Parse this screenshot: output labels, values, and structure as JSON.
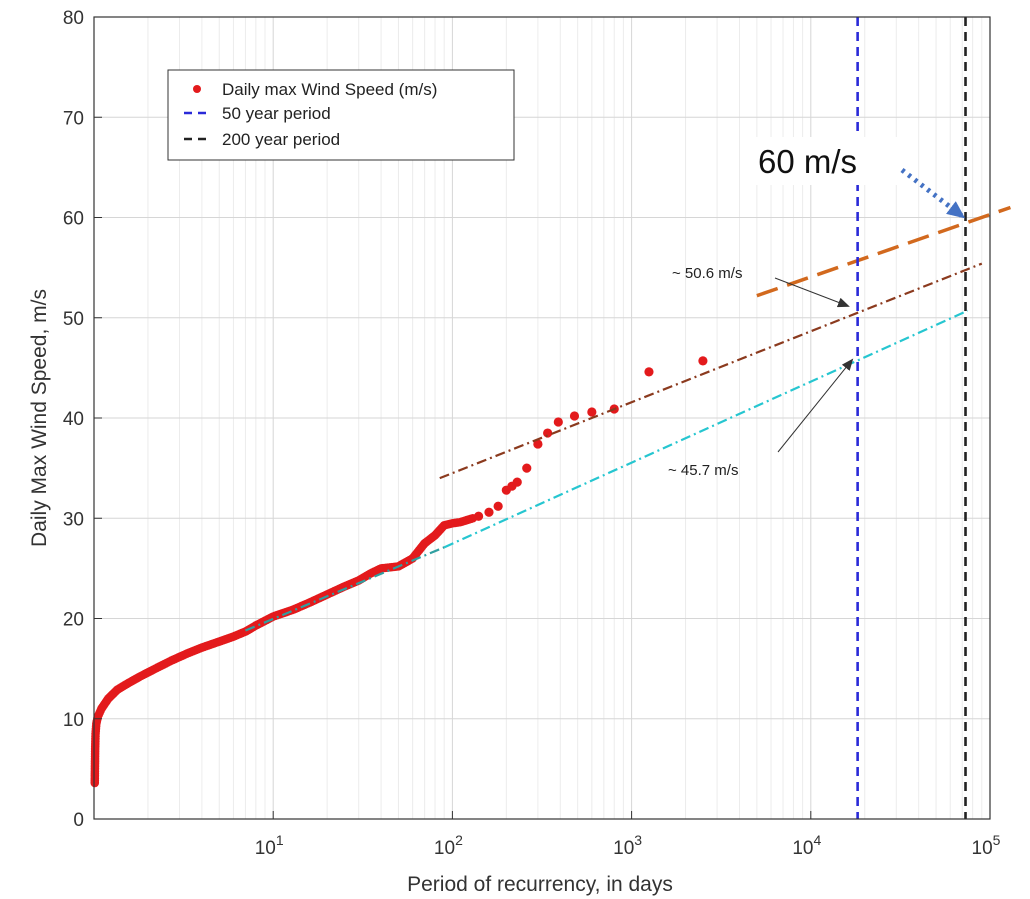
{
  "chart_data": {
    "type": "scatter",
    "title": "",
    "xlabel": "Period of recurrency, in days",
    "ylabel": "Daily Max Wind Speed, m/s",
    "xscale": "log",
    "xlim": [
      1,
      100000
    ],
    "ylim": [
      0,
      80
    ],
    "yticks": [
      0,
      10,
      20,
      30,
      40,
      50,
      60,
      70,
      80
    ],
    "xtick_labels": [
      {
        "base": "10",
        "exp": "1",
        "value": 10
      },
      {
        "base": "10",
        "exp": "2",
        "value": 100
      },
      {
        "base": "10",
        "exp": "3",
        "value": 1000
      },
      {
        "base": "10",
        "exp": "4",
        "value": 10000
      },
      {
        "base": "10",
        "exp": "5",
        "value": 100000
      }
    ],
    "grid": true,
    "legend_position": "top-left",
    "legend": [
      {
        "label": "Daily max Wind Speed (m/s)",
        "marker": "dot",
        "color": "#e31a1c"
      },
      {
        "label": "50 year period",
        "marker": "dash",
        "color": "#2a2ad8"
      },
      {
        "label": "200 year period",
        "marker": "dash",
        "color": "#222222"
      }
    ],
    "observations_curve": {
      "name": "Daily max Wind Speed (m/s)",
      "color": "#e31a1c",
      "points": [
        [
          1.01,
          3.6
        ],
        [
          1.012,
          5
        ],
        [
          1.015,
          7
        ],
        [
          1.02,
          8.5
        ],
        [
          1.03,
          9.5
        ],
        [
          1.05,
          10.2
        ],
        [
          1.1,
          11
        ],
        [
          1.2,
          12
        ],
        [
          1.35,
          12.9
        ],
        [
          1.5,
          13.4
        ],
        [
          1.8,
          14.2
        ],
        [
          2.2,
          15
        ],
        [
          2.7,
          15.8
        ],
        [
          3.3,
          16.5
        ],
        [
          4,
          17.1
        ],
        [
          5,
          17.7
        ],
        [
          6,
          18.2
        ],
        [
          7,
          18.7
        ],
        [
          8,
          19.3
        ],
        [
          10,
          20.2
        ],
        [
          13,
          20.9
        ],
        [
          16,
          21.6
        ],
        [
          20,
          22.4
        ],
        [
          25,
          23.2
        ],
        [
          30,
          23.8
        ],
        [
          35,
          24.5
        ],
        [
          40,
          25
        ],
        [
          50,
          25.2
        ],
        [
          60,
          26
        ],
        [
          70,
          27.5
        ],
        [
          80,
          28.3
        ],
        [
          90,
          29.3
        ],
        [
          100,
          29.5
        ],
        [
          110,
          29.6
        ],
        [
          130,
          30
        ]
      ]
    },
    "observations_upper": {
      "color": "#e31a1c",
      "points": [
        [
          140,
          30.2
        ],
        [
          160,
          30.6
        ],
        [
          180,
          31.2
        ],
        [
          200,
          32.8
        ],
        [
          215,
          33.2
        ],
        [
          230,
          33.6
        ],
        [
          260,
          35
        ],
        [
          300,
          37.4
        ],
        [
          340,
          38.5
        ],
        [
          390,
          39.6
        ],
        [
          480,
          40.2
        ],
        [
          600,
          40.6
        ],
        [
          800,
          40.9
        ],
        [
          1250,
          44.6
        ],
        [
          2500,
          45.7
        ]
      ]
    },
    "fit_lines": [
      {
        "color": "#2f9fa0",
        "style": "dash-dot",
        "points": [
          [
            7,
            18.8
          ],
          [
            90,
            27.1
          ]
        ]
      },
      {
        "color": "#26c6d0",
        "style": "dash-dot",
        "points": [
          [
            90,
            27.1
          ],
          [
            75000,
            50.7
          ]
        ]
      },
      {
        "color": "#8b3a1e",
        "style": "dash-dot",
        "points": [
          [
            85,
            34
          ],
          [
            90000,
            55.4
          ]
        ]
      },
      {
        "color": "#d2691e",
        "style": "dashed",
        "points": [
          [
            5000,
            52.2
          ],
          [
            130000,
            61
          ]
        ]
      }
    ],
    "vertical_lines": [
      {
        "name": "50 year period",
        "x": 18250,
        "color": "#2a2ad8"
      },
      {
        "name": "200 year period",
        "x": 73000,
        "color": "#222222"
      }
    ],
    "annotations": [
      {
        "text": "~ 50.6 m/s",
        "arrow_to": [
          18250,
          50.6
        ]
      },
      {
        "text": "~ 45.7 m/s",
        "arrow_to": [
          18250,
          45.7
        ]
      },
      {
        "text": "60 m/s",
        "arrow_to": [
          73000,
          60
        ]
      }
    ]
  }
}
